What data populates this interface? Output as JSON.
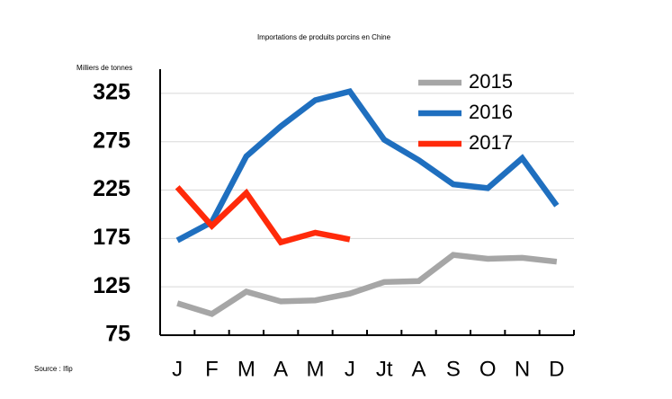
{
  "chart_data": {
    "type": "line",
    "title": "Importations de produits porcins en Chine",
    "y_label": "Milliers de tonnes",
    "source": "Source : Ifip",
    "categories": [
      "J",
      "F",
      "M",
      "A",
      "M",
      "J",
      "Jt",
      "A",
      "S",
      "O",
      "N",
      "D"
    ],
    "series": [
      {
        "name": "2015",
        "color": "#a6a6a6",
        "values": [
          108,
          97,
          120,
          110,
          111,
          118,
          130,
          131,
          158,
          154,
          155,
          151
        ]
      },
      {
        "name": "2016",
        "color": "#1f6fbf",
        "values": [
          173,
          192,
          260,
          291,
          318,
          327,
          277,
          256,
          231,
          227,
          258,
          209
        ]
      },
      {
        "name": "2017",
        "color": "#ff2a0a",
        "values": [
          228,
          188,
          222,
          171,
          181,
          174,
          null,
          null,
          null,
          null,
          null,
          null
        ]
      }
    ],
    "ylim": [
      75,
      350
    ],
    "yticks": [
      75,
      125,
      175,
      225,
      275,
      325
    ],
    "grid": true,
    "legend": "top right"
  }
}
